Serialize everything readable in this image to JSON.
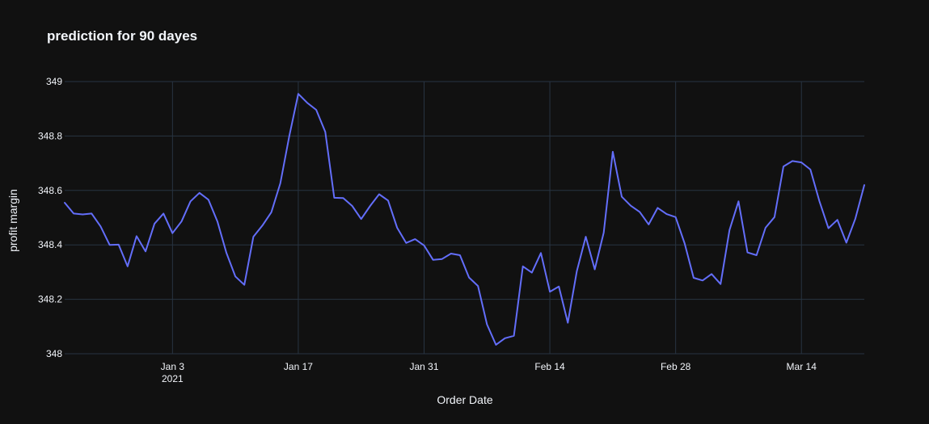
{
  "chart_data": {
    "type": "line",
    "title": "prediction for 90 dayes",
    "xlabel": "Order Date",
    "ylabel": "profit margin",
    "x_ticks": [
      {
        "date": "2021-01-03",
        "label": "Jan 3",
        "sublabel": "2021"
      },
      {
        "date": "2021-01-17",
        "label": "Jan 17",
        "sublabel": ""
      },
      {
        "date": "2021-01-31",
        "label": "Jan 31",
        "sublabel": ""
      },
      {
        "date": "2021-02-14",
        "label": "Feb 14",
        "sublabel": ""
      },
      {
        "date": "2021-02-28",
        "label": "Feb 28",
        "sublabel": ""
      },
      {
        "date": "2021-03-14",
        "label": "Mar 14",
        "sublabel": ""
      }
    ],
    "y_ticks": [
      {
        "value": 348,
        "label": "348"
      },
      {
        "value": 348.2,
        "label": "348.2"
      },
      {
        "value": 348.4,
        "label": "348.4"
      },
      {
        "value": 348.6,
        "label": "348.6"
      },
      {
        "value": 348.8,
        "label": "348.8"
      },
      {
        "value": 349,
        "label": "349"
      }
    ],
    "xlim": [
      "2020-12-22",
      "2021-03-21"
    ],
    "ylim": [
      348,
      349
    ],
    "grid": true,
    "colors": {
      "background": "#111111",
      "grid": "#283442",
      "text": "#f2f5fa",
      "line": "#636efa"
    },
    "series": [
      {
        "color": "#636efa",
        "x": [
          "2020-12-22",
          "2020-12-23",
          "2020-12-24",
          "2020-12-25",
          "2020-12-26",
          "2020-12-27",
          "2020-12-28",
          "2020-12-29",
          "2020-12-30",
          "2020-12-31",
          "2021-01-01",
          "2021-01-02",
          "2021-01-03",
          "2021-01-04",
          "2021-01-05",
          "2021-01-06",
          "2021-01-07",
          "2021-01-08",
          "2021-01-09",
          "2021-01-10",
          "2021-01-11",
          "2021-01-12",
          "2021-01-13",
          "2021-01-14",
          "2021-01-15",
          "2021-01-16",
          "2021-01-17",
          "2021-01-18",
          "2021-01-19",
          "2021-01-20",
          "2021-01-21",
          "2021-01-22",
          "2021-01-23",
          "2021-01-24",
          "2021-01-25",
          "2021-01-26",
          "2021-01-27",
          "2021-01-28",
          "2021-01-29",
          "2021-01-30",
          "2021-01-31",
          "2021-02-01",
          "2021-02-02",
          "2021-02-03",
          "2021-02-04",
          "2021-02-05",
          "2021-02-06",
          "2021-02-07",
          "2021-02-08",
          "2021-02-09",
          "2021-02-10",
          "2021-02-11",
          "2021-02-12",
          "2021-02-13",
          "2021-02-14",
          "2021-02-15",
          "2021-02-16",
          "2021-02-17",
          "2021-02-18",
          "2021-02-19",
          "2021-02-20",
          "2021-02-21",
          "2021-02-22",
          "2021-02-23",
          "2021-02-24",
          "2021-02-25",
          "2021-02-26",
          "2021-02-27",
          "2021-02-28",
          "2021-03-01",
          "2021-03-02",
          "2021-03-03",
          "2021-03-04",
          "2021-03-05",
          "2021-03-06",
          "2021-03-07",
          "2021-03-08",
          "2021-03-09",
          "2021-03-10",
          "2021-03-11",
          "2021-03-12",
          "2021-03-13",
          "2021-03-14",
          "2021-03-15",
          "2021-03-16",
          "2021-03-17",
          "2021-03-18",
          "2021-03-19",
          "2021-03-20",
          "2021-03-21"
        ],
        "y": [
          348.555,
          348.515,
          348.512,
          348.515,
          348.468,
          348.4,
          348.401,
          348.321,
          348.432,
          348.376,
          348.478,
          348.515,
          348.443,
          348.486,
          348.56,
          348.591,
          348.566,
          348.486,
          348.371,
          348.284,
          348.253,
          348.43,
          348.471,
          348.52,
          348.626,
          348.8,
          348.955,
          348.922,
          348.896,
          348.815,
          348.573,
          348.572,
          348.543,
          348.495,
          348.543,
          348.586,
          348.563,
          348.463,
          348.407,
          348.421,
          348.398,
          348.345,
          348.348,
          348.368,
          348.362,
          348.28,
          348.249,
          348.108,
          348.033,
          348.057,
          348.066,
          348.321,
          348.298,
          348.37,
          348.228,
          348.247,
          348.114,
          348.303,
          348.43,
          348.31,
          348.445,
          348.742,
          348.577,
          348.544,
          348.521,
          348.475,
          348.536,
          348.513,
          348.502,
          348.405,
          348.279,
          348.269,
          348.293,
          348.256,
          348.455,
          348.56,
          348.372,
          348.362,
          348.463,
          348.502,
          348.688,
          348.708,
          348.703,
          348.677,
          348.561,
          348.461,
          348.492,
          348.408,
          348.496,
          348.62
        ]
      }
    ]
  }
}
